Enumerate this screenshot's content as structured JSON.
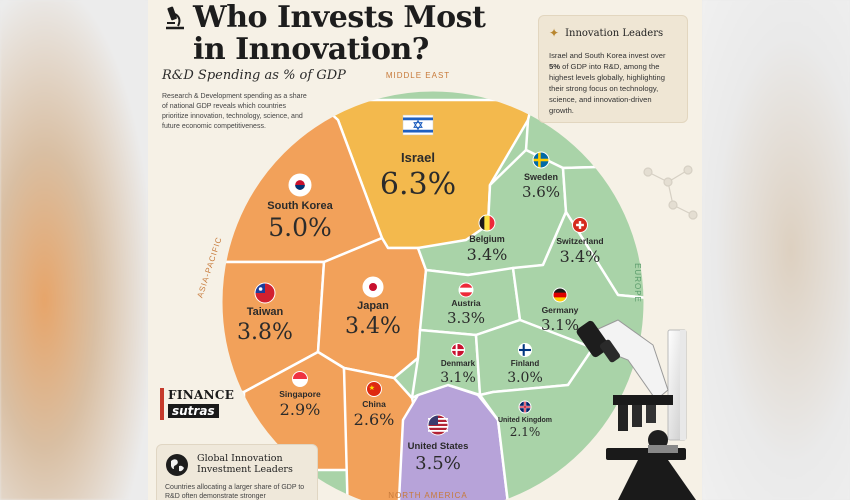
{
  "poster": {
    "title_line1": "Who Invests Most",
    "title_line2": "in Innovation?",
    "subtitle": "R&D Spending as % of GDP",
    "intro": "Research & Development spending as a share of national GDP reveals which countries prioritize innovation, technology, science, and future economic competitiveness."
  },
  "callout": {
    "heading": "Innovation Leaders",
    "body_pre": "Israel and South Korea invest over ",
    "body_bold": "5%",
    "body_post": " of GDP into R&D, among the highest levels globally, highlighting their strong focus on technology, science, and innovation-driven growth."
  },
  "brand": {
    "line1": "FINANCE",
    "line2": "sutras"
  },
  "footer": {
    "heading": "Global Innovation Investment Leaders",
    "body": "Countries allocating a larger share of GDP to R&D often demonstrate stronger"
  },
  "colors": {
    "middle_east": "#f3b94d",
    "asia_pacific": "#f2a15a",
    "europe": "#a9d3a8",
    "north_america": "#b7a3d9",
    "region_label": "#c77a3a",
    "europe_label": "#5a9c6b"
  },
  "chart_data": {
    "type": "voronoi-treemap",
    "unit": "%",
    "regions": [
      {
        "name": "MIDDLE EAST",
        "color": "#f3b94d"
      },
      {
        "name": "ASIA-PACIFIC",
        "color": "#f2a15a"
      },
      {
        "name": "EUROPE",
        "color": "#a9d3a8"
      },
      {
        "name": "NORTH AMERICA",
        "color": "#b7a3d9"
      }
    ],
    "cells": [
      {
        "country": "Israel",
        "value": 6.3,
        "value_label": "6.3%",
        "region": "MIDDLE EAST",
        "flag": "israel-flag"
      },
      {
        "country": "South Korea",
        "value": 5.0,
        "value_label": "5.0%",
        "region": "ASIA-PACIFIC",
        "flag": "south-korea-flag"
      },
      {
        "country": "Taiwan",
        "value": 3.8,
        "value_label": "3.8%",
        "region": "ASIA-PACIFIC",
        "flag": "taiwan-flag"
      },
      {
        "country": "Japan",
        "value": 3.4,
        "value_label": "3.4%",
        "region": "ASIA-PACIFIC",
        "flag": "japan-flag"
      },
      {
        "country": "Singapore",
        "value": 2.9,
        "value_label": "2.9%",
        "region": "ASIA-PACIFIC",
        "flag": "singapore-flag"
      },
      {
        "country": "China",
        "value": 2.6,
        "value_label": "2.6%",
        "region": "ASIA-PACIFIC",
        "flag": "china-flag"
      },
      {
        "country": "Sweden",
        "value": 3.6,
        "value_label": "3.6%",
        "region": "EUROPE",
        "flag": "sweden-flag"
      },
      {
        "country": "Belgium",
        "value": 3.4,
        "value_label": "3.4%",
        "region": "EUROPE",
        "flag": "belgium-flag"
      },
      {
        "country": "Switzerland",
        "value": 3.4,
        "value_label": "3.4%",
        "region": "EUROPE",
        "flag": "switzerland-flag"
      },
      {
        "country": "Austria",
        "value": 3.3,
        "value_label": "3.3%",
        "region": "EUROPE",
        "flag": "austria-flag"
      },
      {
        "country": "Germany",
        "value": 3.1,
        "value_label": "3.1%",
        "region": "EUROPE",
        "flag": "germany-flag"
      },
      {
        "country": "Denmark",
        "value": 3.1,
        "value_label": "3.1%",
        "region": "EUROPE",
        "flag": "denmark-flag"
      },
      {
        "country": "Finland",
        "value": 3.0,
        "value_label": "3.0%",
        "region": "EUROPE",
        "flag": "finland-flag"
      },
      {
        "country": "United Kingdom",
        "value": 2.1,
        "value_label": "2.1%",
        "region": "EUROPE",
        "flag": "uk-flag"
      },
      {
        "country": "United States",
        "value": 3.5,
        "value_label": "3.5%",
        "region": "NORTH AMERICA",
        "flag": "usa-flag"
      }
    ]
  }
}
